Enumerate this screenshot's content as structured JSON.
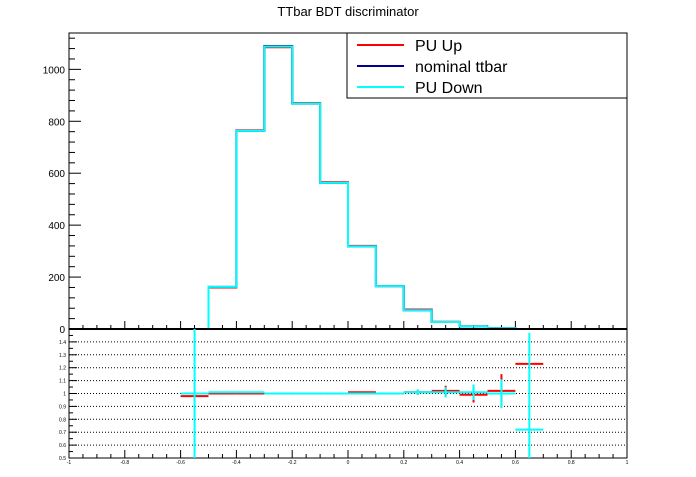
{
  "title": "TTbar BDT discriminator",
  "colors": {
    "pu_up": "#ff0000",
    "nominal": "#000099",
    "pu_down": "#00ffff",
    "axis": "#000000",
    "grid": "#000000"
  },
  "chart_data": [
    {
      "type": "histogram",
      "panel": "main",
      "title": "TTbar BDT discriminator",
      "xlim": [
        -1.0,
        1.0
      ],
      "ylim": [
        0,
        1140
      ],
      "y_ticks": [
        0,
        200,
        400,
        600,
        800,
        1000
      ],
      "y_tick_labels": [
        "0",
        "200",
        "400",
        "600",
        "800",
        "1000"
      ],
      "bin_edges": [
        -1.0,
        -0.9,
        -0.8,
        -0.7,
        -0.6,
        -0.5,
        -0.4,
        -0.3,
        -0.2,
        -0.1,
        0.0,
        0.1,
        0.2,
        0.3,
        0.4,
        0.5,
        0.6,
        0.7,
        0.8,
        0.9,
        1.0
      ],
      "legend": {
        "placement": "top-right"
      },
      "series": [
        {
          "name": "PU Up",
          "color": "#ff0000",
          "values": [
            0,
            0,
            0,
            0,
            0,
            160,
            765,
            1085,
            870,
            565,
            320,
            165,
            75,
            28,
            10,
            3,
            0,
            0,
            0,
            0
          ]
        },
        {
          "name": "nominal ttbar",
          "color": "#000099",
          "values": [
            0,
            0,
            0,
            0,
            0,
            162,
            763,
            1090,
            868,
            563,
            318,
            165,
            72,
            27,
            10,
            3,
            0,
            0,
            0,
            0
          ]
        },
        {
          "name": "PU Down",
          "color": "#00ffff",
          "values": [
            0,
            0,
            0,
            0,
            0,
            162,
            763,
            1088,
            868,
            563,
            318,
            165,
            72,
            27,
            10,
            3,
            0,
            0,
            0,
            0
          ]
        }
      ]
    },
    {
      "type": "ratio",
      "panel": "ratio",
      "xlim": [
        -1.0,
        1.0
      ],
      "ylim": [
        0.5,
        1.5
      ],
      "grid": true,
      "y_ticks": [
        0.5,
        0.6,
        0.7,
        0.8,
        0.9,
        1.0,
        1.1,
        1.2,
        1.3,
        1.4
      ],
      "y_tick_labels": [
        "0.5",
        "0.6",
        "0.7",
        "0.8",
        "0.9",
        "1",
        "1.1",
        "1.2",
        "1.3",
        "1.4"
      ],
      "x_ticks": [
        -1.0,
        -0.8,
        -0.6,
        -0.4,
        -0.2,
        0.0,
        0.2,
        0.4,
        0.6,
        0.8,
        1.0
      ],
      "x_tick_labels": [
        "-1",
        "-0.8",
        "-0.6",
        "-0.4",
        "-0.2",
        "0",
        "0.2",
        "0.4",
        "0.6",
        "0.8",
        "1"
      ],
      "series": [
        {
          "name": "PU Up",
          "color": "#ff0000",
          "points": [
            {
              "x": -0.55,
              "y": 0.98,
              "err": 0
            },
            {
              "x": -0.45,
              "y": 1.0,
              "err": 0
            },
            {
              "x": -0.35,
              "y": 1.0,
              "err": 0
            },
            {
              "x": -0.25,
              "y": 1.0,
              "err": 0
            },
            {
              "x": -0.15,
              "y": 1.0,
              "err": 0
            },
            {
              "x": -0.05,
              "y": 1.0,
              "err": 0
            },
            {
              "x": 0.05,
              "y": 1.01,
              "err": 0
            },
            {
              "x": 0.15,
              "y": 1.0,
              "err": 0
            },
            {
              "x": 0.25,
              "y": 1.01,
              "err": 0.02
            },
            {
              "x": 0.35,
              "y": 1.02,
              "err": 0.04
            },
            {
              "x": 0.45,
              "y": 0.99,
              "err": 0.06
            },
            {
              "x": 0.55,
              "y": 1.02,
              "err": 0.13
            },
            {
              "x": 0.65,
              "y": 1.23,
              "err": 0
            }
          ]
        },
        {
          "name": "PU Down",
          "color": "#00ffff",
          "points": [
            {
              "x": -0.55,
              "y": 1.0,
              "err": 0.75
            },
            {
              "x": -0.45,
              "y": 1.01,
              "err": 0
            },
            {
              "x": -0.35,
              "y": 1.01,
              "err": 0
            },
            {
              "x": -0.25,
              "y": 1.0,
              "err": 0
            },
            {
              "x": -0.15,
              "y": 1.0,
              "err": 0
            },
            {
              "x": -0.05,
              "y": 1.0,
              "err": 0
            },
            {
              "x": 0.05,
              "y": 1.0,
              "err": 0
            },
            {
              "x": 0.15,
              "y": 1.0,
              "err": 0
            },
            {
              "x": 0.25,
              "y": 1.01,
              "err": 0.02
            },
            {
              "x": 0.35,
              "y": 1.01,
              "err": 0.04
            },
            {
              "x": 0.45,
              "y": 1.01,
              "err": 0.06
            },
            {
              "x": 0.55,
              "y": 1.0,
              "err": 0.11
            },
            {
              "x": 0.65,
              "y": 0.72,
              "err": 0.75
            }
          ]
        }
      ]
    }
  ]
}
